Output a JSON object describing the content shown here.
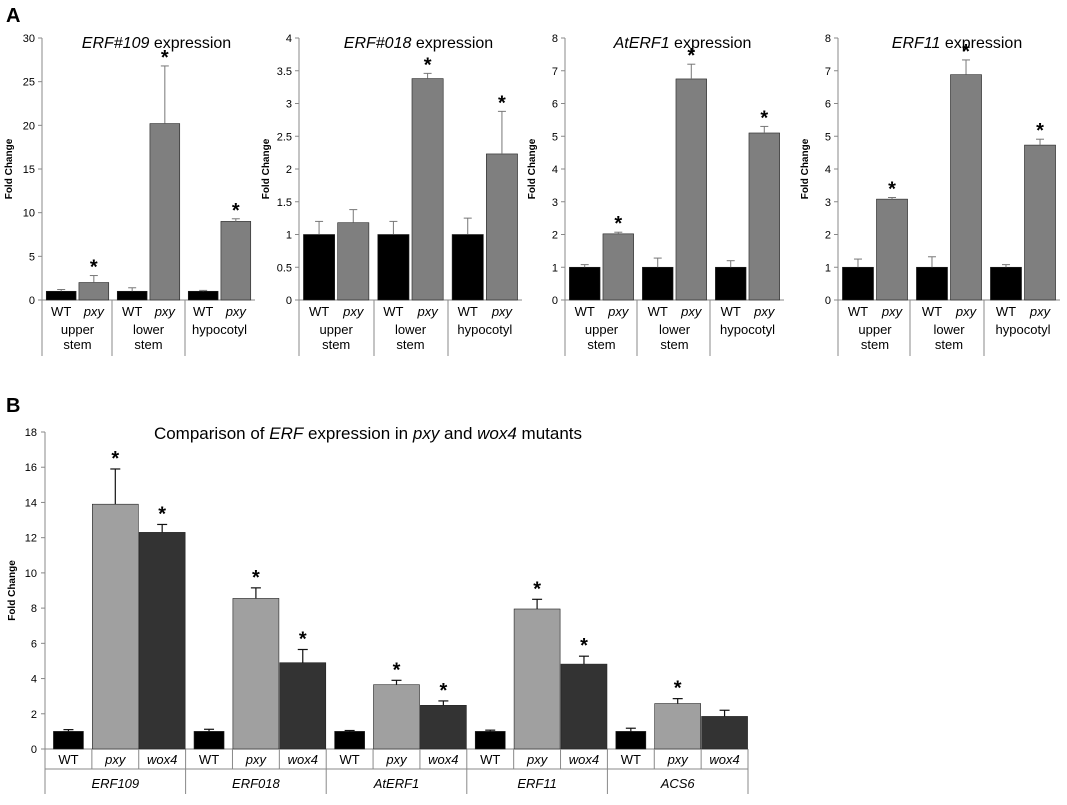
{
  "panel_labels": [
    "A",
    "B"
  ],
  "colors": {
    "wt": "#000000",
    "mutant_a": "#7f7f7f",
    "pxy_b": "#a0a0a0",
    "wox4_b": "#333333"
  },
  "chart_data": [
    {
      "type": "bar",
      "title_parts": [
        {
          "text": "ERF#109",
          "italic": true
        },
        {
          "text": " expression",
          "italic": false
        }
      ],
      "ylabel": "Fold Change",
      "ylim": [
        0,
        30
      ],
      "yticks": [
        "0",
        "5",
        "10",
        "15",
        "20",
        "25",
        "30"
      ],
      "groups": [
        "upper\nstem",
        "lower\nstem",
        "hypocotyl"
      ],
      "series_labels": [
        "WT",
        "pxy"
      ],
      "values": [
        [
          1.0,
          2.0
        ],
        [
          1.0,
          20.2
        ],
        [
          1.0,
          9.0
        ]
      ],
      "errors": [
        [
          0.2,
          0.8
        ],
        [
          0.4,
          6.6
        ],
        [
          0.1,
          0.3
        ]
      ],
      "significant": [
        [
          false,
          true
        ],
        [
          false,
          true
        ],
        [
          false,
          true
        ]
      ],
      "star": "*"
    },
    {
      "type": "bar",
      "title_parts": [
        {
          "text": "ERF#018",
          "italic": true
        },
        {
          "text": " expression",
          "italic": false
        }
      ],
      "ylabel": "Fold Change",
      "ylim": [
        0,
        4
      ],
      "yticks": [
        "0",
        "0.5",
        "1",
        "1.5",
        "2",
        "2.5",
        "3",
        "3.5",
        "4"
      ],
      "groups": [
        "upper\nstem",
        "lower\nstem",
        "hypocotyl"
      ],
      "series_labels": [
        "WT",
        "pxy"
      ],
      "values": [
        [
          1.0,
          1.18
        ],
        [
          1.0,
          3.38
        ],
        [
          1.0,
          2.23
        ]
      ],
      "errors": [
        [
          0.2,
          0.2
        ],
        [
          0.2,
          0.08
        ],
        [
          0.25,
          0.65
        ]
      ],
      "significant": [
        [
          false,
          false
        ],
        [
          false,
          true
        ],
        [
          false,
          true
        ]
      ],
      "star": "*"
    },
    {
      "type": "bar",
      "title_parts": [
        {
          "text": "AtERF1",
          "italic": true
        },
        {
          "text": " expression",
          "italic": false
        }
      ],
      "ylabel": "Fold Change",
      "ylim": [
        0,
        8
      ],
      "yticks": [
        "0",
        "1",
        "2",
        "3",
        "4",
        "5",
        "6",
        "7",
        "8"
      ],
      "groups": [
        "upper\nstem",
        "lower\nstem",
        "hypocotyl"
      ],
      "series_labels": [
        "WT",
        "pxy"
      ],
      "values": [
        [
          1.0,
          2.02
        ],
        [
          1.0,
          6.75
        ],
        [
          1.0,
          5.1
        ]
      ],
      "errors": [
        [
          0.08,
          0.05
        ],
        [
          0.28,
          0.45
        ],
        [
          0.2,
          0.2
        ]
      ],
      "significant": [
        [
          false,
          true
        ],
        [
          false,
          true
        ],
        [
          false,
          true
        ]
      ],
      "star": "*"
    },
    {
      "type": "bar",
      "title_parts": [
        {
          "text": "ERF11",
          "italic": true
        },
        {
          "text": " expression",
          "italic": false
        }
      ],
      "ylabel": "Fold Change",
      "ylim": [
        0,
        8
      ],
      "yticks": [
        "0",
        "1",
        "2",
        "3",
        "4",
        "5",
        "6",
        "7",
        "8"
      ],
      "groups": [
        "upper\nstem",
        "lower\nstem",
        "hypocotyl"
      ],
      "series_labels": [
        "WT",
        "pxy"
      ],
      "values": [
        [
          1.0,
          3.08
        ],
        [
          1.0,
          6.88
        ],
        [
          1.0,
          4.73
        ]
      ],
      "errors": [
        [
          0.25,
          0.05
        ],
        [
          0.32,
          0.45
        ],
        [
          0.08,
          0.18
        ]
      ],
      "significant": [
        [
          false,
          true
        ],
        [
          false,
          true
        ],
        [
          false,
          true
        ]
      ],
      "star": "*"
    },
    {
      "type": "bar",
      "title_parts": [
        {
          "text": "Comparison of ",
          "italic": false
        },
        {
          "text": "ERF",
          "italic": true
        },
        {
          "text": " expression in ",
          "italic": false
        },
        {
          "text": "pxy",
          "italic": true
        },
        {
          "text": " and ",
          "italic": false
        },
        {
          "text": "wox4",
          "italic": true
        },
        {
          "text": " mutants",
          "italic": false
        }
      ],
      "ylabel": "Fold Change",
      "ylim": [
        0,
        18
      ],
      "yticks": [
        "0",
        "2",
        "4",
        "6",
        "8",
        "10",
        "12",
        "14",
        "16",
        "18"
      ],
      "groups": [
        "ERF109",
        "ERF018",
        "AtERF1",
        "ERF11",
        "ACS6"
      ],
      "series_labels": [
        "WT",
        "pxy",
        "wox4"
      ],
      "values": [
        [
          1.0,
          13.9,
          12.3
        ],
        [
          1.0,
          8.55,
          4.9
        ],
        [
          1.0,
          3.65,
          2.48
        ],
        [
          1.0,
          7.95,
          4.82
        ],
        [
          1.0,
          2.58,
          1.85
        ]
      ],
      "errors": [
        [
          0.1,
          2.0,
          0.45
        ],
        [
          0.12,
          0.6,
          0.75
        ],
        [
          0.05,
          0.25,
          0.25
        ],
        [
          0.07,
          0.55,
          0.45
        ],
        [
          0.18,
          0.28,
          0.35
        ]
      ],
      "significant": [
        [
          false,
          true,
          true
        ],
        [
          false,
          true,
          true
        ],
        [
          false,
          true,
          true
        ],
        [
          false,
          true,
          true
        ],
        [
          false,
          true,
          false
        ]
      ],
      "star": "*"
    }
  ]
}
